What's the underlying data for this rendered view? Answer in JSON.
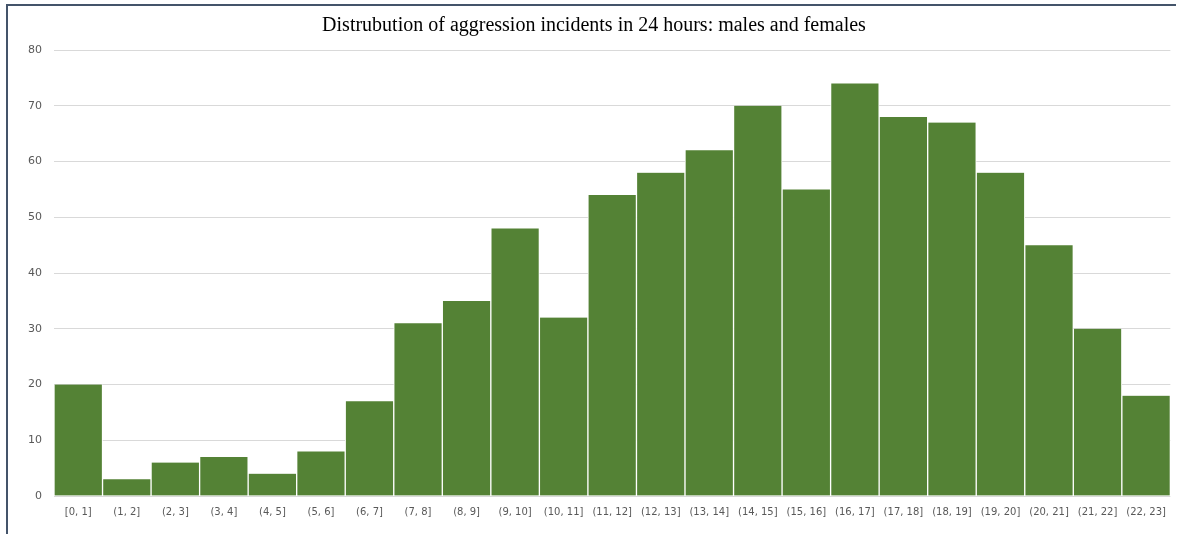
{
  "chart_data": {
    "type": "bar",
    "title": "Distrubution of aggression incidents in 24 hours: males and females",
    "categories": [
      "[0, 1]",
      "(1, 2]",
      "(2, 3]",
      "(3, 4]",
      "(4, 5]",
      "(5, 6]",
      "(6, 7]",
      "(7, 8]",
      "(8, 9]",
      "(9, 10]",
      "(10, 11]",
      "(11, 12]",
      "(12, 13]",
      "(13, 14]",
      "(14, 15]",
      "(15, 16]",
      "(16, 17]",
      "(17, 18]",
      "(18, 19]",
      "(19, 20]",
      "(20, 21]",
      "(21, 22]",
      "(22, 23]"
    ],
    "values": [
      20,
      3,
      6,
      7,
      4,
      8,
      17,
      31,
      35,
      48,
      32,
      54,
      58,
      62,
      70,
      55,
      74,
      68,
      67,
      58,
      45,
      30,
      18
    ],
    "color": "#548235",
    "ylim": [
      0,
      80
    ],
    "yticks": [
      0,
      10,
      20,
      30,
      40,
      50,
      60,
      70,
      80
    ],
    "grid": "y",
    "legend": false
  }
}
